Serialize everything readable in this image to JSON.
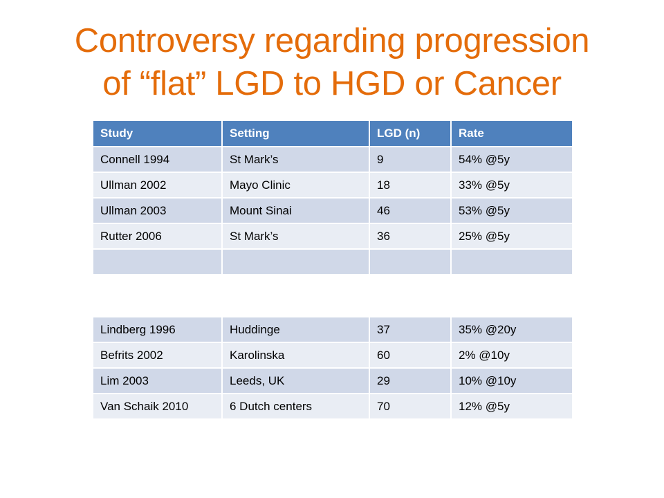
{
  "slide": {
    "title_line1": "Controversy regarding progression",
    "title_line2": "of “flat” LGD to HGD or Cancer"
  },
  "table1": {
    "headers": [
      "Study",
      "Setting",
      "LGD (n)",
      "Rate"
    ],
    "rows": [
      [
        "Connell 1994",
        "St Mark’s",
        "9",
        "54% @5y"
      ],
      [
        "Ullman 2002",
        "Mayo Clinic",
        "18",
        "33% @5y"
      ],
      [
        "Ullman 2003",
        "Mount Sinai",
        "46",
        "53% @5y"
      ],
      [
        "Rutter 2006",
        "St Mark’s",
        "36",
        "25% @5y"
      ],
      [
        "",
        "",
        "",
        ""
      ]
    ]
  },
  "table2": {
    "rows": [
      [
        "Lindberg 1996",
        "Huddinge",
        "37",
        "35% @20y"
      ],
      [
        "Befrits 2002",
        "Karolinska",
        "60",
        "2% @10y"
      ],
      [
        "Lim 2003",
        "Leeds, UK",
        "29",
        "10% @10y"
      ],
      [
        "Van Schaik 2010",
        "6 Dutch centers",
        "70",
        "12% @5y"
      ]
    ]
  },
  "colors": {
    "title": "#E46C0A",
    "header_bg": "#4F81BD",
    "row_dark": "#D0D8E8",
    "row_light": "#E9EDF4"
  }
}
